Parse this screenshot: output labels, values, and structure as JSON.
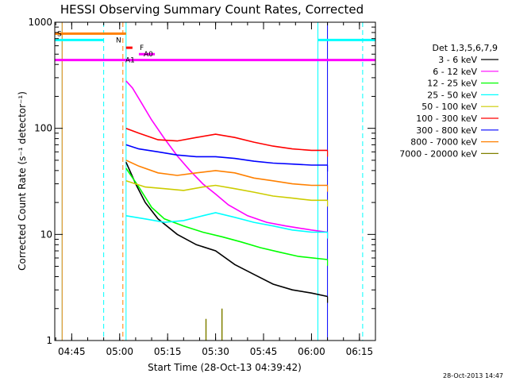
{
  "chart_data": {
    "type": "line",
    "title": "HESSI Observing Summary Count Rates, Corrected",
    "xlabel": "Start Time (28-Oct-13 04:39:42)",
    "ylabel": "Corrected Count Rate (s⁻¹ detector⁻¹)",
    "yscale": "log",
    "ylim": [
      1,
      1000
    ],
    "xlim": [
      "04:39:42",
      "06:20"
    ],
    "x_ticks": [
      "04:45",
      "05:00",
      "05:15",
      "05:30",
      "05:45",
      "06:00",
      "06:15"
    ],
    "y_ticks": [
      "1",
      "10",
      "100",
      "1000"
    ],
    "legend_title": "Det 1,3,5,6,7,9",
    "legend_position": "right",
    "timestamp": "28-Oct-2013 14:47",
    "grid": false,
    "series": [
      {
        "name": "3 - 6 keV",
        "color": "#000000",
        "points": [
          [
            "05:02",
            48
          ],
          [
            "05:05",
            30
          ],
          [
            "05:08",
            20
          ],
          [
            "05:12",
            14
          ],
          [
            "05:18",
            10
          ],
          [
            "05:24",
            8
          ],
          [
            "05:30",
            7
          ],
          [
            "05:36",
            5.2
          ],
          [
            "05:42",
            4.2
          ],
          [
            "05:48",
            3.4
          ],
          [
            "05:54",
            3.0
          ],
          [
            "06:00",
            2.8
          ],
          [
            "06:05",
            2.6
          ]
        ]
      },
      {
        "name": "6 - 12 keV",
        "color": "#ff00ff",
        "points": [
          [
            "05:02",
            280
          ],
          [
            "05:04",
            240
          ],
          [
            "05:07",
            170
          ],
          [
            "05:10",
            120
          ],
          [
            "05:14",
            80
          ],
          [
            "05:18",
            55
          ],
          [
            "05:22",
            40
          ],
          [
            "05:26",
            30
          ],
          [
            "05:30",
            24
          ],
          [
            "05:34",
            19
          ],
          [
            "05:40",
            15
          ],
          [
            "05:46",
            13
          ],
          [
            "05:52",
            12
          ],
          [
            "06:00",
            11
          ],
          [
            "06:05",
            10.5
          ]
        ]
      },
      {
        "name": "12 - 25 keV",
        "color": "#00ff00",
        "points": [
          [
            "05:02",
            42
          ],
          [
            "05:06",
            28
          ],
          [
            "05:10",
            18
          ],
          [
            "05:14",
            14
          ],
          [
            "05:20",
            12
          ],
          [
            "05:26",
            10.5
          ],
          [
            "05:32",
            9.5
          ],
          [
            "05:38",
            8.5
          ],
          [
            "05:44",
            7.5
          ],
          [
            "05:50",
            6.8
          ],
          [
            "05:56",
            6.2
          ],
          [
            "06:05",
            5.8
          ]
        ]
      },
      {
        "name": "25 - 50 keV",
        "color": "#00ffff",
        "points": [
          [
            "05:02",
            15
          ],
          [
            "05:08",
            14
          ],
          [
            "05:14",
            13
          ],
          [
            "05:20",
            13.5
          ],
          [
            "05:26",
            15
          ],
          [
            "05:30",
            16
          ],
          [
            "05:36",
            14.5
          ],
          [
            "05:42",
            13
          ],
          [
            "05:48",
            12
          ],
          [
            "05:54",
            11
          ],
          [
            "06:00",
            10.5
          ],
          [
            "06:05",
            10.5
          ]
        ]
      },
      {
        "name": "50 - 100 keV",
        "color": "#cccc00",
        "points": [
          [
            "05:02",
            32
          ],
          [
            "05:08",
            28
          ],
          [
            "05:14",
            27
          ],
          [
            "05:20",
            26
          ],
          [
            "05:26",
            28
          ],
          [
            "05:30",
            29
          ],
          [
            "05:36",
            27
          ],
          [
            "05:42",
            25
          ],
          [
            "05:48",
            23
          ],
          [
            "05:54",
            22
          ],
          [
            "06:00",
            21
          ],
          [
            "06:05",
            21
          ]
        ]
      },
      {
        "name": "100 - 300 keV",
        "color": "#ff0000",
        "points": [
          [
            "05:02",
            100
          ],
          [
            "05:06",
            90
          ],
          [
            "05:12",
            78
          ],
          [
            "05:18",
            76
          ],
          [
            "05:24",
            82
          ],
          [
            "05:30",
            88
          ],
          [
            "05:36",
            82
          ],
          [
            "05:42",
            74
          ],
          [
            "05:48",
            68
          ],
          [
            "05:54",
            64
          ],
          [
            "06:00",
            62
          ],
          [
            "06:05",
            62
          ]
        ]
      },
      {
        "name": "300 - 800 keV",
        "color": "#0000ff",
        "points": [
          [
            "05:02",
            70
          ],
          [
            "05:06",
            64
          ],
          [
            "05:12",
            60
          ],
          [
            "05:18",
            56
          ],
          [
            "05:24",
            54
          ],
          [
            "05:30",
            54
          ],
          [
            "05:36",
            52
          ],
          [
            "05:42",
            49
          ],
          [
            "05:48",
            47
          ],
          [
            "05:54",
            46
          ],
          [
            "06:00",
            45
          ],
          [
            "06:05",
            45
          ]
        ]
      },
      {
        "name": "800 - 7000 keV",
        "color": "#ff8000",
        "points": [
          [
            "05:02",
            50
          ],
          [
            "05:06",
            44
          ],
          [
            "05:12",
            38
          ],
          [
            "05:18",
            36
          ],
          [
            "05:24",
            38
          ],
          [
            "05:30",
            40
          ],
          [
            "05:36",
            38
          ],
          [
            "05:42",
            34
          ],
          [
            "05:48",
            32
          ],
          [
            "05:54",
            30
          ],
          [
            "06:00",
            29
          ],
          [
            "06:05",
            29
          ]
        ]
      },
      {
        "name": "7000 - 20000 keV",
        "color": "#808000",
        "points": [
          [
            "05:27",
            1.6
          ],
          [
            "05:28",
            1.0
          ],
          [
            "05:32",
            2.0
          ],
          [
            "05:33",
            1.0
          ]
        ]
      }
    ],
    "flags": [
      {
        "label": "S",
        "color": "#ff8000",
        "intervals": [
          [
            "04:39:42",
            "05:02"
          ]
        ],
        "level": 780
      },
      {
        "label": "N",
        "color": "#00ffff",
        "intervals": [
          [
            "04:39:42",
            "04:55"
          ],
          [
            "06:02",
            "06:20"
          ]
        ],
        "level": 680
      },
      {
        "label": "F",
        "color": "#ff0000",
        "intervals": [
          [
            "05:02",
            "05:04"
          ]
        ],
        "level": 575
      },
      {
        "label": "A0",
        "color": "#ff00ff",
        "intervals": [
          [
            "05:06",
            "05:11"
          ]
        ],
        "level": 500
      },
      {
        "label": "A1",
        "color": "#ff00ff",
        "intervals": [
          [
            "04:39:42",
            "06:20"
          ]
        ],
        "level": 440
      }
    ],
    "vertical_markers": [
      {
        "t": "04:42",
        "color": "#00ffff",
        "style": "solid"
      },
      {
        "t": "04:42",
        "color": "#ff8000",
        "style": "solid"
      },
      {
        "t": "04:55",
        "color": "#00ffff",
        "style": "dashed"
      },
      {
        "t": "05:01",
        "color": "#ff8000",
        "style": "dashed"
      },
      {
        "t": "05:02",
        "color": "#00ffff",
        "style": "solid"
      },
      {
        "t": "06:02",
        "color": "#00ffff",
        "style": "solid"
      },
      {
        "t": "06:05",
        "color": "#0000ff",
        "style": "solid"
      },
      {
        "t": "06:16",
        "color": "#00ffff",
        "style": "dashed"
      }
    ]
  }
}
